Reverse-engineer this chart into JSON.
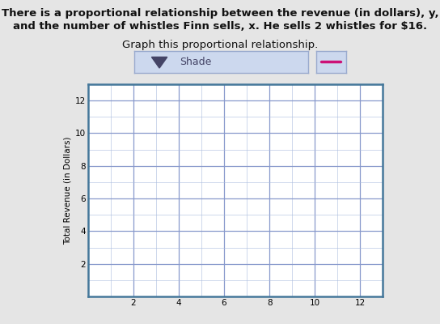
{
  "title_line1": "There is a proportional relationship between the revenue (in dollars), y,",
  "title_line2": "and the number of whistles Finn sells, x. He sells 2 whistles for $16.",
  "subtitle_text": "Graph this proportional relationship.",
  "shade_label": "Shade",
  "ylabel": "Total Revenue (in Dollars)",
  "xlim": [
    0,
    13
  ],
  "ylim": [
    0,
    13
  ],
  "xticks": [
    2,
    4,
    6,
    8,
    10,
    12
  ],
  "yticks": [
    2,
    4,
    6,
    8,
    10,
    12
  ],
  "minor_ticks": [
    0,
    1,
    2,
    3,
    4,
    5,
    6,
    7,
    8,
    9,
    10,
    11,
    12
  ],
  "grid_major_color": "#8899cc",
  "grid_minor_color": "#aabbdd",
  "grid_major_lw": 0.9,
  "grid_minor_lw": 0.4,
  "plot_bg_color": "#ffffff",
  "outer_bg_color": "#e5e5e5",
  "axis_border_color": "#44779a",
  "axis_border_linewidth": 1.8,
  "shade_box_color": "#ccd8ee",
  "shade_box_border": "#99aace",
  "shade_triangle_color": "#444466",
  "swatch_box_color": "#ccd8ee",
  "swatch_box_border": "#99aace",
  "line_color": "#cc1177",
  "line_linewidth": 2.5,
  "title_fontsize": 9.5,
  "subtitle_fontsize": 9.5,
  "axis_label_fontsize": 7.5,
  "tick_fontsize": 7.5,
  "shade_fontsize": 9
}
